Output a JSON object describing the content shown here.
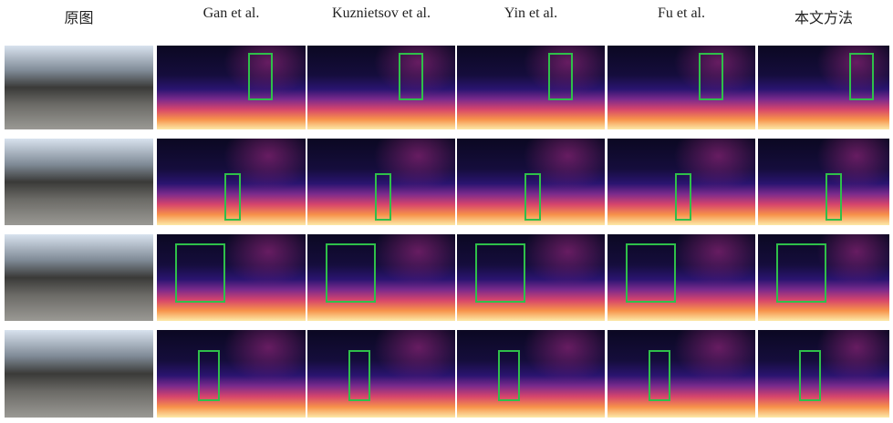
{
  "columns": [
    "原图",
    "Gan et al.",
    "Kuznietsov et al.",
    "Yin et al.",
    "Fu et al.",
    "本文方法"
  ]
}
